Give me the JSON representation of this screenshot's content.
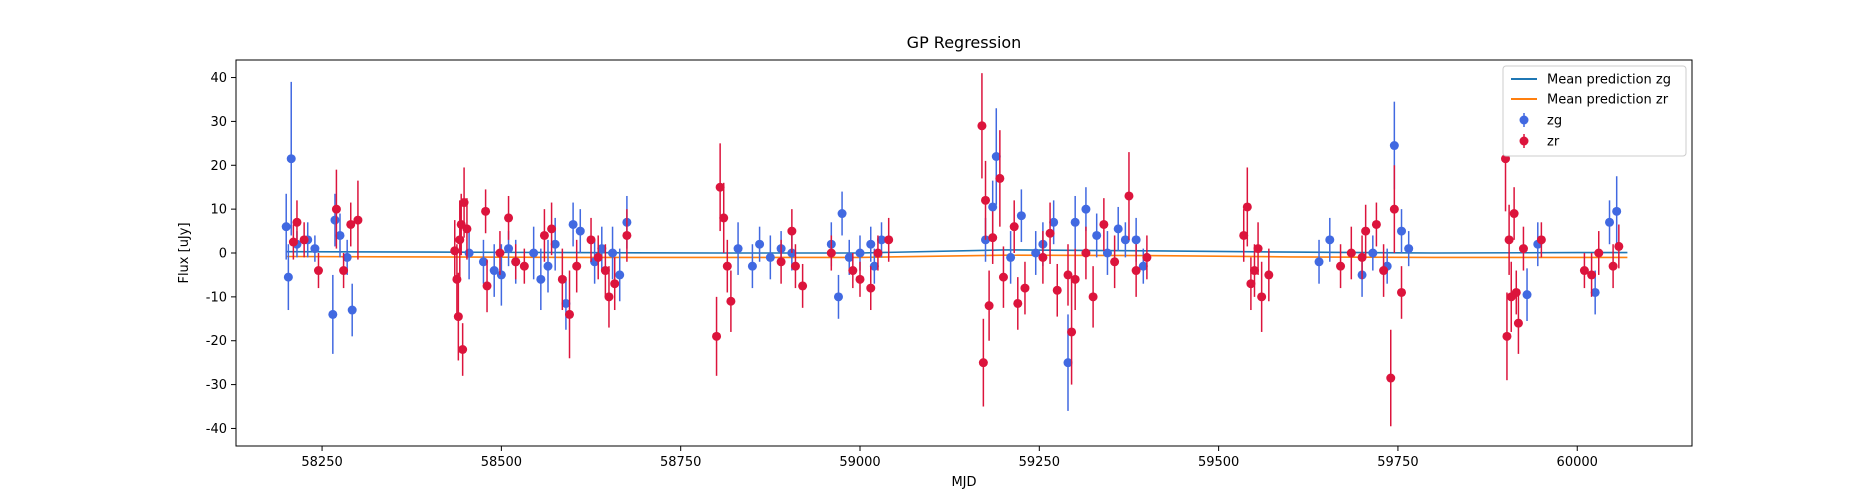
{
  "chart_data": {
    "type": "scatter",
    "title": "GP Regression",
    "xlabel": "MJD",
    "ylabel": "Flux [uJy]",
    "xlim": [
      58130,
      60160
    ],
    "ylim": [
      -44,
      44
    ],
    "xticks": [
      58250,
      58500,
      58750,
      59000,
      59250,
      59500,
      59750,
      60000
    ],
    "yticks": [
      -40,
      -30,
      -20,
      -10,
      0,
      10,
      20,
      30,
      40
    ],
    "grid": false,
    "legend_position": "top-right",
    "legend": [
      "Mean prediction zg",
      "Mean prediction zr",
      "zg",
      "zr"
    ],
    "colors": {
      "zg_points": "#4169e1",
      "zr_points": "#dc143c",
      "zg_mean": "#1f77b4",
      "zr_mean": "#ff7f0e"
    },
    "mean_lines": [
      {
        "name": "Mean prediction zg",
        "x": [
          58200,
          58400,
          58600,
          58800,
          59000,
          59200,
          59400,
          59600,
          59800,
          60000,
          60070
        ],
        "y": [
          0.3,
          0.2,
          0.1,
          0.0,
          0.0,
          0.7,
          0.5,
          0.2,
          0.0,
          0.1,
          0.1
        ]
      },
      {
        "name": "Mean prediction zr",
        "x": [
          58200,
          58400,
          58600,
          58800,
          59000,
          59200,
          59400,
          59600,
          59800,
          60000,
          60070
        ],
        "y": [
          -0.8,
          -0.9,
          -1.0,
          -1.0,
          -1.0,
          -0.5,
          -0.6,
          -0.9,
          -1.0,
          -1.0,
          -1.0
        ]
      }
    ],
    "series": [
      {
        "name": "zg",
        "points": [
          [
            58200,
            6,
            7.5
          ],
          [
            58203,
            -5.5,
            7.5
          ],
          [
            58207,
            21.5,
            17.5
          ],
          [
            58215,
            2,
            3
          ],
          [
            58230,
            3,
            4
          ],
          [
            58240,
            1,
            3
          ],
          [
            58265,
            -14,
            9
          ],
          [
            58268,
            7.5,
            6
          ],
          [
            58275,
            4,
            5
          ],
          [
            58285,
            -1,
            4
          ],
          [
            58292,
            -13,
            6
          ],
          [
            58455,
            0,
            6
          ],
          [
            58475,
            -2,
            5
          ],
          [
            58490,
            -4,
            6
          ],
          [
            58500,
            -5,
            7
          ],
          [
            58510,
            1,
            4
          ],
          [
            58520,
            -2,
            5
          ],
          [
            58545,
            0,
            6
          ],
          [
            58555,
            -6,
            7
          ],
          [
            58565,
            -3,
            6
          ],
          [
            58575,
            2,
            6
          ],
          [
            58590,
            -11.5,
            6
          ],
          [
            58600,
            6.5,
            5
          ],
          [
            58610,
            5,
            5
          ],
          [
            58630,
            -2,
            5
          ],
          [
            58640,
            1,
            5
          ],
          [
            58655,
            0,
            6
          ],
          [
            58665,
            -5,
            6
          ],
          [
            58675,
            7,
            6
          ],
          [
            58830,
            1,
            6
          ],
          [
            58850,
            -3,
            5
          ],
          [
            58860,
            2,
            4
          ],
          [
            58875,
            -1,
            5
          ],
          [
            58890,
            1,
            4
          ],
          [
            58905,
            0,
            4
          ],
          [
            58960,
            2,
            5
          ],
          [
            58970,
            -10,
            5
          ],
          [
            58975,
            9,
            5
          ],
          [
            58985,
            -1,
            4
          ],
          [
            59000,
            0,
            4
          ],
          [
            59015,
            2,
            4
          ],
          [
            59020,
            -3,
            4
          ],
          [
            59030,
            3,
            4
          ],
          [
            59175,
            3,
            5
          ],
          [
            59185,
            10.5,
            6
          ],
          [
            59190,
            22,
            11
          ],
          [
            59210,
            -1,
            6
          ],
          [
            59225,
            8.5,
            6
          ],
          [
            59245,
            0,
            5
          ],
          [
            59255,
            2,
            5
          ],
          [
            59270,
            7,
            5
          ],
          [
            59290,
            -25,
            11
          ],
          [
            59300,
            7,
            6
          ],
          [
            59315,
            10,
            5
          ],
          [
            59330,
            4,
            5
          ],
          [
            59345,
            0,
            5
          ],
          [
            59360,
            5.5,
            5
          ],
          [
            59370,
            3,
            4
          ],
          [
            59385,
            3,
            5
          ],
          [
            59395,
            -3,
            4
          ],
          [
            59640,
            -2,
            5
          ],
          [
            59655,
            3,
            5
          ],
          [
            59700,
            -5,
            5
          ],
          [
            59715,
            0,
            4
          ],
          [
            59735,
            -3,
            4
          ],
          [
            59745,
            24.5,
            10
          ],
          [
            59755,
            5,
            5
          ],
          [
            59765,
            1,
            4
          ],
          [
            59930,
            -9.5,
            6
          ],
          [
            59945,
            2,
            5
          ],
          [
            60025,
            -9,
            5
          ],
          [
            60045,
            7,
            5
          ],
          [
            60055,
            9.5,
            8
          ]
        ]
      },
      {
        "name": "zr",
        "points": [
          [
            58210,
            2.5,
            4
          ],
          [
            58215,
            7,
            5
          ],
          [
            58225,
            3,
            4
          ],
          [
            58245,
            -4,
            4
          ],
          [
            58270,
            10,
            9
          ],
          [
            58280,
            -4,
            4
          ],
          [
            58290,
            6.5,
            5
          ],
          [
            58300,
            7.5,
            9
          ],
          [
            58435,
            0.5,
            7
          ],
          [
            58438,
            -6,
            8
          ],
          [
            58440,
            -14.5,
            10
          ],
          [
            58442,
            3,
            9
          ],
          [
            58444,
            6.5,
            7
          ],
          [
            58446,
            -22,
            6
          ],
          [
            58448,
            11.5,
            8
          ],
          [
            58452,
            5.5,
            7
          ],
          [
            58478,
            9.5,
            5
          ],
          [
            58480,
            -7.5,
            6
          ],
          [
            58498,
            0,
            5
          ],
          [
            58510,
            8,
            5
          ],
          [
            58520,
            -2,
            4
          ],
          [
            58532,
            -3,
            4
          ],
          [
            58560,
            4,
            6
          ],
          [
            58570,
            5.5,
            6
          ],
          [
            58585,
            -6,
            7
          ],
          [
            58595,
            -14,
            10
          ],
          [
            58605,
            -3,
            6
          ],
          [
            58625,
            3,
            5
          ],
          [
            58635,
            -1,
            5
          ],
          [
            58645,
            -4,
            6
          ],
          [
            58650,
            -10,
            7
          ],
          [
            58658,
            -7,
            6
          ],
          [
            58675,
            4,
            6
          ],
          [
            58800,
            -19,
            9
          ],
          [
            58805,
            15,
            10
          ],
          [
            58810,
            8,
            8
          ],
          [
            58815,
            -3,
            6
          ],
          [
            58820,
            -11,
            7
          ],
          [
            58890,
            -2,
            5
          ],
          [
            58905,
            5,
            5
          ],
          [
            58910,
            -3,
            5
          ],
          [
            58920,
            -7.5,
            5
          ],
          [
            58960,
            0,
            4
          ],
          [
            58990,
            -4,
            4
          ],
          [
            59000,
            -6,
            4
          ],
          [
            59015,
            -8,
            5
          ],
          [
            59025,
            0,
            4
          ],
          [
            59040,
            3,
            5
          ],
          [
            59170,
            29,
            12
          ],
          [
            59172,
            -25,
            10
          ],
          [
            59175,
            12,
            9
          ],
          [
            59180,
            -12,
            8
          ],
          [
            59185,
            3.5,
            6
          ],
          [
            59195,
            17,
            11
          ],
          [
            59200,
            -5.5,
            7
          ],
          [
            59215,
            6,
            6
          ],
          [
            59220,
            -11.5,
            6
          ],
          [
            59230,
            -8,
            6
          ],
          [
            59255,
            -1,
            6
          ],
          [
            59265,
            4.5,
            7
          ],
          [
            59275,
            -8.5,
            6
          ],
          [
            59290,
            -5,
            7
          ],
          [
            59295,
            -18,
            12
          ],
          [
            59300,
            -6,
            7
          ],
          [
            59315,
            0,
            6
          ],
          [
            59325,
            -10,
            7
          ],
          [
            59340,
            6.5,
            6
          ],
          [
            59355,
            -2,
            6
          ],
          [
            59375,
            13,
            10
          ],
          [
            59385,
            -4,
            6
          ],
          [
            59400,
            -1,
            5
          ],
          [
            59535,
            4,
            6
          ],
          [
            59540,
            10.5,
            9
          ],
          [
            59545,
            -7,
            6
          ],
          [
            59550,
            -4,
            6
          ],
          [
            59555,
            1,
            6
          ],
          [
            59560,
            -10,
            8
          ],
          [
            59570,
            -5,
            6
          ],
          [
            59670,
            -3,
            5
          ],
          [
            59685,
            0,
            6
          ],
          [
            59700,
            -1,
            5
          ],
          [
            59705,
            5,
            6
          ],
          [
            59720,
            6.5,
            5
          ],
          [
            59730,
            -4,
            6
          ],
          [
            59740,
            -28.5,
            11
          ],
          [
            59745,
            10,
            10
          ],
          [
            59755,
            -9,
            6
          ],
          [
            59900,
            21.5,
            12
          ],
          [
            59902,
            -19,
            10
          ],
          [
            59905,
            3,
            8
          ],
          [
            59908,
            -10,
            8
          ],
          [
            59912,
            9,
            6
          ],
          [
            59915,
            -9,
            5
          ],
          [
            59918,
            -16,
            7
          ],
          [
            59925,
            1,
            5
          ],
          [
            59950,
            3,
            4
          ],
          [
            60010,
            -4,
            4
          ],
          [
            60020,
            -5,
            5
          ],
          [
            60030,
            0,
            5
          ],
          [
            60050,
            -3,
            5
          ],
          [
            60058,
            1.5,
            5
          ]
        ]
      }
    ]
  }
}
